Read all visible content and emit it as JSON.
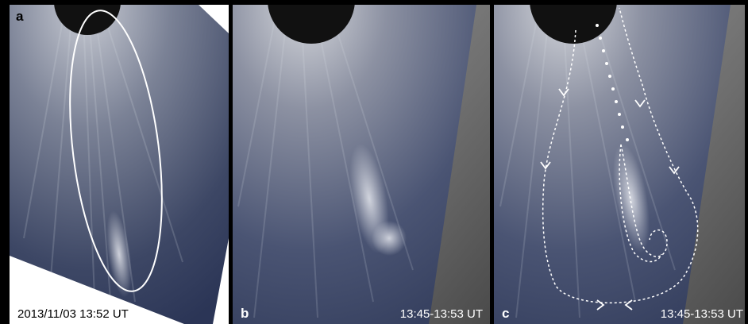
{
  "panels": [
    {
      "label": "a",
      "caption": "2013/11/03 13:52 UT"
    },
    {
      "label": "b",
      "caption": "13:45-13:53 UT"
    },
    {
      "label": "c",
      "caption": "13:45-13:53 UT"
    }
  ]
}
